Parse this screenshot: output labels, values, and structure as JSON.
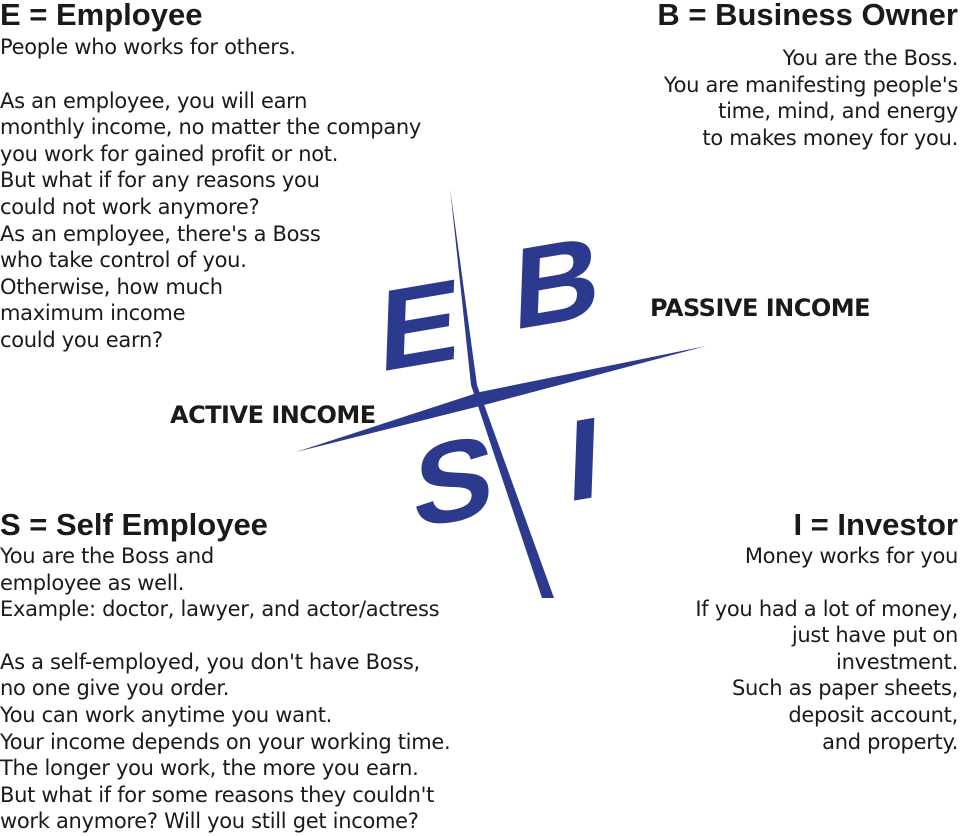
{
  "employee": {
    "title": "E = Employee",
    "intro": "People who works for others.",
    "body": "As an employee, you will earn\nmonthly income, no matter the company\nyou work for gained profit or not.\nBut what if for any reasons you\ncould not work anymore?\nAs an employee, there's a Boss\nwho take control of you.\nOtherwise, how much\nmaximum income\ncould you earn?"
  },
  "business_owner": {
    "title": "B = Business Owner",
    "body": "You are the Boss.\nYou are manifesting people's\ntime, mind, and energy\nto makes money for you."
  },
  "self_employee": {
    "title": "S = Self Employee",
    "intro": "You are the Boss and\nemployee as well.\nExample: doctor, lawyer, and actor/actress",
    "body": "As a self-employed, you don't have Boss,\nno one give you order.\nYou can work anytime you want.\nYour income depends on your working time.\nThe longer you work, the more you earn.\nBut what if for some reasons they couldn't\nwork anymore? Will you still get income?"
  },
  "investor": {
    "title": "I = Investor",
    "intro": "Money works for you",
    "body": "If you had a lot of money,\njust have put on\ninvestment.\nSuch as paper sheets,\ndeposit account,\nand property."
  },
  "quadrant": {
    "letters": {
      "e": "E",
      "b": "B",
      "s": "S",
      "i": "I"
    },
    "passive_label": "PASSIVE INCOME",
    "active_label": "ACTIVE INCOME",
    "color": "#2b3a8c"
  }
}
